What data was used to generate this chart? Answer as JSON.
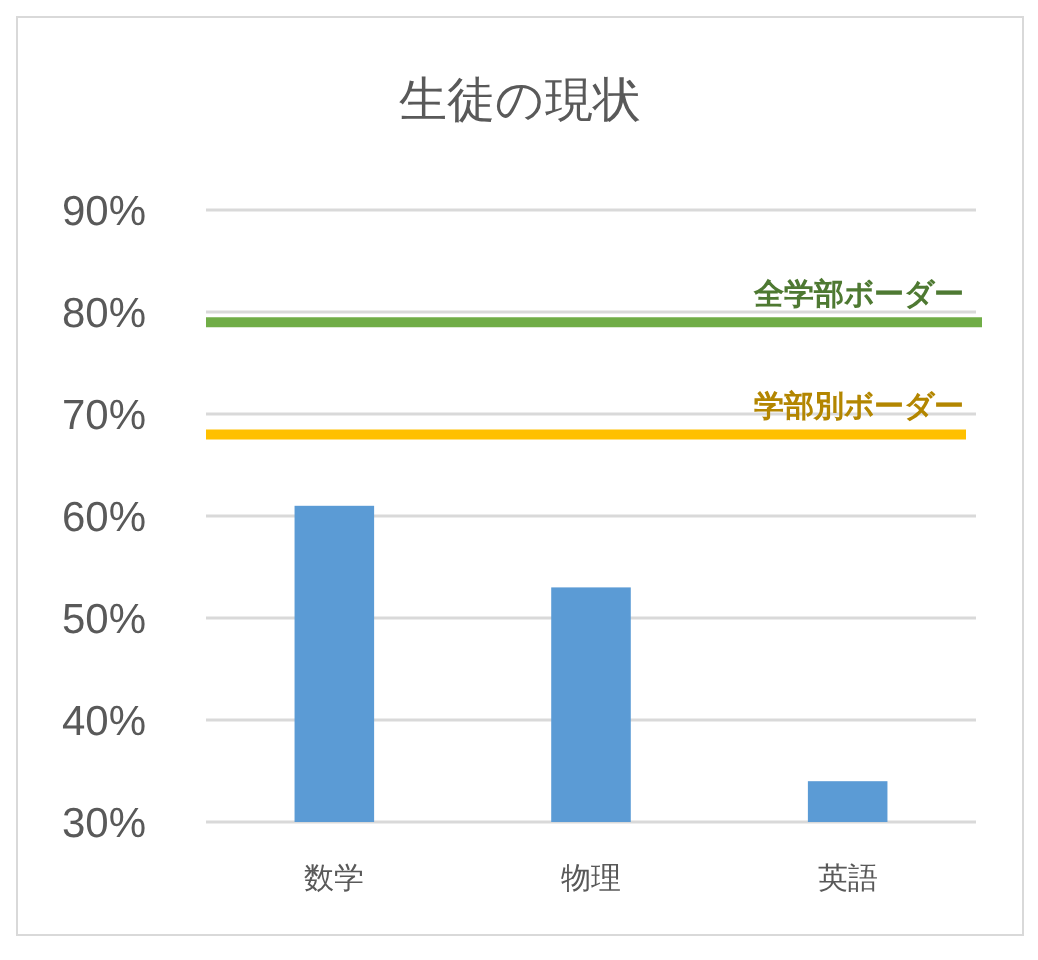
{
  "chart_data": {
    "type": "bar",
    "title": "生徒の現状",
    "categories": [
      "数学",
      "物理",
      "英語"
    ],
    "values": [
      61,
      53,
      34
    ],
    "color": "#5b9bd5",
    "ylim": [
      30,
      90
    ],
    "yticks": [
      {
        "value": 30,
        "label": "30%"
      },
      {
        "value": 40,
        "label": "40%"
      },
      {
        "value": 50,
        "label": "50%"
      },
      {
        "value": 60,
        "label": "60%"
      },
      {
        "value": 70,
        "label": "70%"
      },
      {
        "value": 80,
        "label": "80%"
      },
      {
        "value": 90,
        "label": "90%"
      }
    ],
    "grid": "y",
    "ref_lines": [
      {
        "axis": "y",
        "value": 79,
        "label": "全学部ボーダー",
        "color": "#70ad47"
      },
      {
        "axis": "y",
        "value": 68,
        "label": "学部別ボーダー",
        "color": "#ffc000"
      }
    ]
  }
}
